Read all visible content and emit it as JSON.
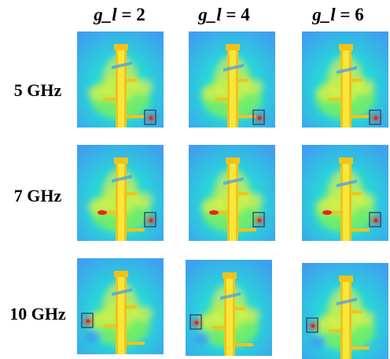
{
  "columns": [
    {
      "prefix": "g_l",
      "suffix": " = 2"
    },
    {
      "prefix": "g_l",
      "suffix": " = 4"
    },
    {
      "prefix": "g_l",
      "suffix": " = 6"
    }
  ],
  "rows": [
    {
      "label": "5 GHz",
      "box_side": "right"
    },
    {
      "label": "7 GHz",
      "box_side": "right"
    },
    {
      "label": "10 GHz",
      "box_side": "left"
    }
  ],
  "colors": {
    "background_field": "#27d6d8",
    "low_field": "#3fa0f0",
    "mid_field": "#7cf05a",
    "high_field": "#f6f043",
    "hot_spot": "#e6261f",
    "feed_line": "#f2c21a",
    "box": "#3b4a78"
  }
}
